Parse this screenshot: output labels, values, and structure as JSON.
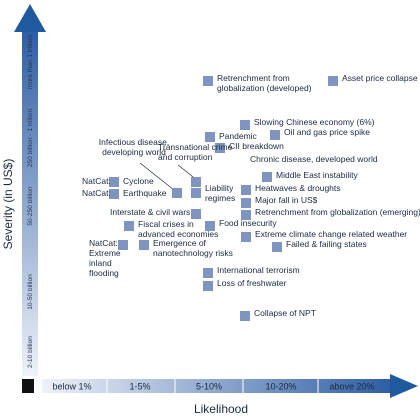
{
  "chart_data": {
    "type": "scatter",
    "xlabel": "Likelihood",
    "ylabel": "Severity (in US$)",
    "x_categories": [
      "below 1%",
      "1-5%",
      "5-10%",
      "10-20%",
      "above 20%"
    ],
    "y_categories": [
      "2-10 billion",
      "10-50 billion",
      "50-250 billion",
      "250 billion - 1 trillion",
      "more than 1 trillion"
    ],
    "colors": {
      "marker": "#7f95bf",
      "axis_arrow": "#1f5a9e",
      "axis_bar": "#c4d0e6",
      "text": "#1a2a40"
    },
    "points": [
      {
        "label": "Retrenchment from globalization (developed)",
        "x": "5-10%",
        "y": "more than 1 trillion"
      },
      {
        "label": "Asset price collapse",
        "x": "above 20%",
        "y": "more than 1 trillion"
      },
      {
        "label": "Slowing Chinese economy (6%)",
        "x": "10-20%",
        "y": "250 billion - 1 trillion"
      },
      {
        "label": "Oil and gas price spike",
        "x": "10-20%",
        "y": "250 billion - 1 trillion"
      },
      {
        "label": "Pandemic",
        "x": "5-10%",
        "y": "250 billion - 1 trillion"
      },
      {
        "label": "CII breakdown",
        "x": "5-10%",
        "y": "250 billion - 1 trillion"
      },
      {
        "label": "Chronic disease, developed world",
        "x": "10-20%",
        "y": "250 billion - 1 trillion"
      },
      {
        "label": "Infectious disease, developing world",
        "x": "1-5%",
        "y": "250 billion - 1 trillion"
      },
      {
        "label": "Transnational crime and corruption",
        "x": "1-5%",
        "y": "250 billion - 1 trillion"
      },
      {
        "label": "Middle East instability",
        "x": "10-20%",
        "y": "50-250 billion"
      },
      {
        "label": "Heatwaves & droughts",
        "x": "10-20%",
        "y": "50-250 billion"
      },
      {
        "label": "Major fall in US$",
        "x": "10-20%",
        "y": "50-250 billion"
      },
      {
        "label": "Retrenchment from globalization (emerging)",
        "x": "10-20%",
        "y": "50-250 billion"
      },
      {
        "label": "Liability regimes",
        "x": "5-10%",
        "y": "50-250 billion"
      },
      {
        "label": "NatCat: Cyclone",
        "x": "1-5%",
        "y": "50-250 billion"
      },
      {
        "label": "NatCat: Earthquake",
        "x": "1-5%",
        "y": "50-250 billion"
      },
      {
        "label": "Interstate & civil wars",
        "x": "1-5%",
        "y": "50-250 billion"
      },
      {
        "label": "Food insecurity",
        "x": "5-10%",
        "y": "50-250 billion"
      },
      {
        "label": "Fiscal crises in advanced economies",
        "x": "1-5%",
        "y": "50-250 billion"
      },
      {
        "label": "Extreme climate change related weather",
        "x": "10-20%",
        "y": "50-250 billion"
      },
      {
        "label": "Failed & failing states",
        "x": "10-20%",
        "y": "50-250 billion"
      },
      {
        "label": "NatCat: Extreme inland flooding",
        "x": "1-5%",
        "y": "10-50 billion"
      },
      {
        "label": "Emergence of nanotechnology risks",
        "x": "1-5%",
        "y": "10-50 billion"
      },
      {
        "label": "International terrorism",
        "x": "5-10%",
        "y": "10-50 billion"
      },
      {
        "label": "Loss of freshwater",
        "x": "5-10%",
        "y": "10-50 billion"
      },
      {
        "label": "Collapse of NPT",
        "x": "10-20%",
        "y": "10-50 billion"
      }
    ]
  }
}
